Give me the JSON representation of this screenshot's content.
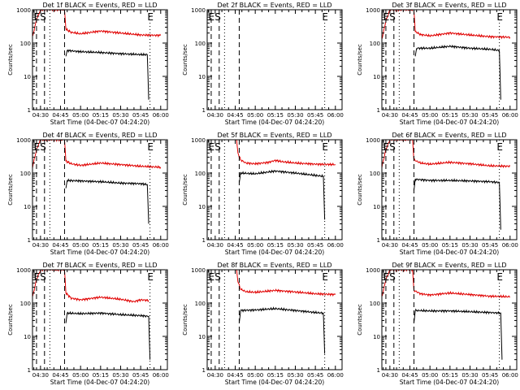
{
  "colors": {
    "events": "#000000",
    "lld": "#e00000",
    "axes": "#000000",
    "background": "#ffffff"
  },
  "chart_data": [
    {
      "type": "line",
      "title": "Det 1f BLACK = Events, RED = LLD",
      "xlabel": "Start Time (04-Dec-07 04:24:20)",
      "ylabel": "Counts/sec",
      "yscale": "log",
      "ylim": [
        1,
        1000
      ],
      "xlim": [
        "04:24",
        "06:05"
      ],
      "x_ticks": [
        "04:30",
        "04:45",
        "05:00",
        "05:15",
        "05:30",
        "05:45",
        "06:00"
      ],
      "y_ticks": [
        "1",
        "10",
        "100",
        "1000"
      ],
      "markers": [
        {
          "label": "ES",
          "time": "04:25"
        },
        {
          "label": "E",
          "time": "05:50"
        }
      ],
      "dashed_lines": [
        "04:27",
        "04:33",
        "04:48"
      ],
      "dotted_lines": [
        "04:37",
        "05:52"
      ],
      "series": [
        {
          "color": "#e00000",
          "points": [
            [
              "04:24",
              150
            ],
            [
              "04:27",
              500
            ],
            [
              "04:30",
              1000
            ],
            [
              "04:48",
              1000
            ],
            [
              "04:49",
              260
            ],
            [
              "04:53",
              210
            ],
            [
              "05:00",
              190
            ],
            [
              "05:15",
              230
            ],
            [
              "05:30",
              200
            ],
            [
              "05:45",
              175
            ],
            [
              "06:00",
              170
            ]
          ]
        },
        {
          "color": "#000000",
          "points": [
            [
              "04:49",
              40
            ],
            [
              "04:50",
              60
            ],
            [
              "05:00",
              55
            ],
            [
              "05:15",
              52
            ],
            [
              "05:30",
              48
            ],
            [
              "05:45",
              45
            ],
            [
              "05:50",
              45
            ],
            [
              "05:51",
              2
            ]
          ]
        }
      ]
    },
    {
      "type": "line",
      "title": "Det 2f BLACK = Events, RED = LLD",
      "xlabel": "Start Time (04-Dec-07 04:24:20)",
      "ylabel": "Counts/sec",
      "yscale": "log",
      "ylim": [
        1,
        1000
      ],
      "xlim": [
        "04:24",
        "06:05"
      ],
      "x_ticks": [
        "04:30",
        "04:45",
        "05:00",
        "05:15",
        "05:30",
        "05:45",
        "06:00"
      ],
      "y_ticks": [
        "1",
        "10",
        "100",
        "1000"
      ],
      "markers": [
        {
          "label": "ES",
          "time": "04:25"
        },
        {
          "label": "E",
          "time": "05:50"
        }
      ],
      "dashed_lines": [
        "04:27",
        "04:33",
        "04:48"
      ],
      "dotted_lines": [
        "04:37",
        "05:52"
      ],
      "series": []
    },
    {
      "type": "line",
      "title": "Det 3f BLACK = Events, RED = LLD",
      "xlabel": "Start Time (04-Dec-07 04:24:20)",
      "ylabel": "Counts/sec",
      "yscale": "log",
      "ylim": [
        1,
        1000
      ],
      "xlim": [
        "04:24",
        "06:05"
      ],
      "x_ticks": [
        "04:30",
        "04:45",
        "05:00",
        "05:15",
        "05:30",
        "05:45",
        "06:00"
      ],
      "y_ticks": [
        "1",
        "10",
        "100",
        "1000"
      ],
      "markers": [
        {
          "label": "ES",
          "time": "04:25"
        },
        {
          "label": "E",
          "time": "05:50"
        }
      ],
      "dashed_lines": [
        "04:27",
        "04:33",
        "04:48"
      ],
      "dotted_lines": [
        "04:37",
        "05:52"
      ],
      "series": [
        {
          "color": "#e00000",
          "points": [
            [
              "04:24",
              130
            ],
            [
              "04:27",
              450
            ],
            [
              "04:30",
              1000
            ],
            [
              "04:48",
              1000
            ],
            [
              "04:49",
              220
            ],
            [
              "04:53",
              180
            ],
            [
              "05:00",
              165
            ],
            [
              "05:15",
              200
            ],
            [
              "05:30",
              175
            ],
            [
              "05:45",
              155
            ],
            [
              "06:00",
              150
            ]
          ]
        },
        {
          "color": "#000000",
          "points": [
            [
              "04:49",
              40
            ],
            [
              "04:50",
              70
            ],
            [
              "05:00",
              70
            ],
            [
              "05:15",
              80
            ],
            [
              "05:30",
              70
            ],
            [
              "05:45",
              65
            ],
            [
              "05:52",
              60
            ],
            [
              "05:53",
              2
            ]
          ]
        }
      ]
    },
    {
      "type": "line",
      "title": "Det 4f BLACK = Events, RED = LLD",
      "xlabel": "Start Time (04-Dec-07 04:24:20)",
      "ylabel": "Counts/sec",
      "yscale": "log",
      "ylim": [
        1,
        1000
      ],
      "xlim": [
        "04:24",
        "06:05"
      ],
      "x_ticks": [
        "04:30",
        "04:45",
        "05:00",
        "05:15",
        "05:30",
        "05:45",
        "06:00"
      ],
      "y_ticks": [
        "1",
        "10",
        "100",
        "1000"
      ],
      "markers": [
        {
          "label": "ES",
          "time": "04:25"
        },
        {
          "label": "E",
          "time": "05:50"
        }
      ],
      "dashed_lines": [
        "04:27",
        "04:33",
        "04:48"
      ],
      "dotted_lines": [
        "04:37",
        "05:52"
      ],
      "series": [
        {
          "color": "#e00000",
          "points": [
            [
              "04:24",
              150
            ],
            [
              "04:27",
              500
            ],
            [
              "04:30",
              1000
            ],
            [
              "04:48",
              1000
            ],
            [
              "04:49",
              230
            ],
            [
              "04:53",
              190
            ],
            [
              "05:00",
              170
            ],
            [
              "05:15",
              200
            ],
            [
              "05:30",
              180
            ],
            [
              "05:45",
              160
            ],
            [
              "06:00",
              150
            ]
          ]
        },
        {
          "color": "#000000",
          "points": [
            [
              "04:49",
              35
            ],
            [
              "04:50",
              60
            ],
            [
              "05:00",
              58
            ],
            [
              "05:15",
              55
            ],
            [
              "05:30",
              50
            ],
            [
              "05:45",
              48
            ],
            [
              "05:50",
              45
            ],
            [
              "05:51",
              3
            ]
          ]
        }
      ]
    },
    {
      "type": "line",
      "title": "Det 5f BLACK = Events, RED = LLD",
      "xlabel": "Start Time (04-Dec-07 04:24:20)",
      "ylabel": "Counts/sec",
      "yscale": "log",
      "ylim": [
        1,
        1000
      ],
      "xlim": [
        "04:24",
        "06:05"
      ],
      "x_ticks": [
        "04:30",
        "04:45",
        "05:00",
        "05:15",
        "05:30",
        "05:45",
        "06:00"
      ],
      "y_ticks": [
        "1",
        "10",
        "100",
        "1000"
      ],
      "markers": [
        {
          "label": "ES",
          "time": "04:25"
        },
        {
          "label": "E",
          "time": "05:50"
        }
      ],
      "dashed_lines": [
        "04:27",
        "04:33",
        "04:48"
      ],
      "dotted_lines": [
        "04:37",
        "05:52"
      ],
      "series": [
        {
          "color": "#e00000",
          "points": [
            [
              "04:46",
              1000
            ],
            [
              "04:47",
              400
            ],
            [
              "04:49",
              250
            ],
            [
              "04:53",
              200
            ],
            [
              "05:00",
              190
            ],
            [
              "05:10",
              210
            ],
            [
              "05:15",
              240
            ],
            [
              "05:20",
              220
            ],
            [
              "05:30",
              200
            ],
            [
              "05:45",
              185
            ],
            [
              "06:00",
              180
            ]
          ]
        },
        {
          "color": "#000000",
          "points": [
            [
              "04:48",
              50
            ],
            [
              "04:49",
              100
            ],
            [
              "05:00",
              95
            ],
            [
              "05:15",
              115
            ],
            [
              "05:30",
              100
            ],
            [
              "05:45",
              85
            ],
            [
              "05:51",
              80
            ],
            [
              "05:52",
              4
            ]
          ]
        }
      ]
    },
    {
      "type": "line",
      "title": "Det 6f BLACK = Events, RED = LLD",
      "xlabel": "Start Time (04-Dec-07 04:24:20)",
      "ylabel": "Counts/sec",
      "yscale": "log",
      "ylim": [
        1,
        1000
      ],
      "xlim": [
        "04:24",
        "06:05"
      ],
      "x_ticks": [
        "04:30",
        "04:45",
        "05:00",
        "05:15",
        "05:30",
        "05:45",
        "06:00"
      ],
      "y_ticks": [
        "1",
        "10",
        "100",
        "1000"
      ],
      "markers": [
        {
          "label": "ES",
          "time": "04:25"
        },
        {
          "label": "E",
          "time": "05:50"
        }
      ],
      "dashed_lines": [
        "04:27",
        "04:33",
        "04:48"
      ],
      "dotted_lines": [
        "04:37",
        "05:52"
      ],
      "series": [
        {
          "color": "#e00000",
          "points": [
            [
              "04:24",
              150
            ],
            [
              "04:27",
              500
            ],
            [
              "04:30",
              1000
            ],
            [
              "04:47",
              1000
            ],
            [
              "04:48",
              250
            ],
            [
              "04:53",
              200
            ],
            [
              "05:00",
              185
            ],
            [
              "05:15",
              210
            ],
            [
              "05:30",
              190
            ],
            [
              "05:45",
              165
            ],
            [
              "06:00",
              160
            ]
          ]
        },
        {
          "color": "#000000",
          "points": [
            [
              "04:48",
              30
            ],
            [
              "04:49",
              65
            ],
            [
              "05:00",
              60
            ],
            [
              "05:15",
              60
            ],
            [
              "05:30",
              58
            ],
            [
              "05:45",
              55
            ],
            [
              "05:52",
              52
            ],
            [
              "05:53",
              2
            ]
          ]
        }
      ]
    },
    {
      "type": "line",
      "title": "Det 7f BLACK = Events, RED = LLD",
      "xlabel": "Start Time (04-Dec-07 04:24:20)",
      "ylabel": "Counts/sec",
      "yscale": "log",
      "ylim": [
        1,
        1000
      ],
      "xlim": [
        "04:24",
        "06:05"
      ],
      "x_ticks": [
        "04:30",
        "04:45",
        "05:00",
        "05:15",
        "05:30",
        "05:45",
        "06:00"
      ],
      "y_ticks": [
        "1",
        "10",
        "100",
        "1000"
      ],
      "markers": [
        {
          "label": "ES",
          "time": "04:25"
        },
        {
          "label": "E",
          "time": "05:50"
        }
      ],
      "dashed_lines": [
        "04:27",
        "04:33",
        "04:48"
      ],
      "dotted_lines": [
        "04:37",
        "05:52"
      ],
      "series": [
        {
          "color": "#e00000",
          "points": [
            [
              "04:24",
              150
            ],
            [
              "04:27",
              500
            ],
            [
              "04:30",
              1000
            ],
            [
              "04:48",
              1000
            ],
            [
              "04:49",
              200
            ],
            [
              "04:53",
              140
            ],
            [
              "05:00",
              125
            ],
            [
              "05:15",
              150
            ],
            [
              "05:30",
              130
            ],
            [
              "05:40",
              110
            ],
            [
              "05:45",
              125
            ],
            [
              "05:51",
              120
            ]
          ]
        },
        {
          "color": "#000000",
          "points": [
            [
              "04:49",
              25
            ],
            [
              "04:50",
              50
            ],
            [
              "05:00",
              48
            ],
            [
              "05:15",
              50
            ],
            [
              "05:30",
              45
            ],
            [
              "05:45",
              42
            ],
            [
              "05:51",
              40
            ],
            [
              "05:52",
              2
            ]
          ]
        }
      ]
    },
    {
      "type": "line",
      "title": "Det 8f BLACK = Events, RED = LLD",
      "xlabel": "Start Time (04-Dec-07 04:24:20)",
      "ylabel": "Counts/sec",
      "yscale": "log",
      "ylim": [
        1,
        1000
      ],
      "xlim": [
        "04:24",
        "06:05"
      ],
      "x_ticks": [
        "04:30",
        "04:45",
        "05:00",
        "05:15",
        "05:30",
        "05:45",
        "06:00"
      ],
      "y_ticks": [
        "1",
        "10",
        "100",
        "1000"
      ],
      "markers": [
        {
          "label": "ES",
          "time": "04:25"
        },
        {
          "label": "E",
          "time": "05:50"
        }
      ],
      "dashed_lines": [
        "04:27",
        "04:33",
        "04:48"
      ],
      "dotted_lines": [
        "04:37",
        "05:52"
      ],
      "series": [
        {
          "color": "#e00000",
          "points": [
            [
              "04:46",
              1000
            ],
            [
              "04:47",
              450
            ],
            [
              "04:49",
              260
            ],
            [
              "04:53",
              220
            ],
            [
              "05:00",
              210
            ],
            [
              "05:15",
              240
            ],
            [
              "05:30",
              215
            ],
            [
              "05:45",
              190
            ],
            [
              "06:00",
              180
            ]
          ]
        },
        {
          "color": "#000000",
          "points": [
            [
              "04:48",
              25
            ],
            [
              "04:49",
              60
            ],
            [
              "05:00",
              62
            ],
            [
              "05:15",
              68
            ],
            [
              "05:30",
              60
            ],
            [
              "05:45",
              52
            ],
            [
              "05:51",
              50
            ],
            [
              "05:52",
              3
            ]
          ]
        }
      ]
    },
    {
      "type": "line",
      "title": "Det 9f BLACK = Events, RED = LLD",
      "xlabel": "Start Time (04-Dec-07 04:24:20)",
      "ylabel": "Counts/sec",
      "yscale": "log",
      "ylim": [
        1,
        1000
      ],
      "xlim": [
        "04:24",
        "06:05"
      ],
      "x_ticks": [
        "04:30",
        "04:45",
        "05:00",
        "05:15",
        "05:30",
        "05:45",
        "06:00"
      ],
      "y_ticks": [
        "1",
        "10",
        "100",
        "1000"
      ],
      "markers": [
        {
          "label": "ES",
          "time": "04:25"
        },
        {
          "label": "E",
          "time": "05:50"
        }
      ],
      "dashed_lines": [
        "04:27",
        "04:33",
        "04:48"
      ],
      "dotted_lines": [
        "04:37",
        "05:52"
      ],
      "series": [
        {
          "color": "#e00000",
          "points": [
            [
              "04:24",
              150
            ],
            [
              "04:27",
              500
            ],
            [
              "04:30",
              1000
            ],
            [
              "04:47",
              1000
            ],
            [
              "04:48",
              240
            ],
            [
              "04:53",
              190
            ],
            [
              "05:00",
              175
            ],
            [
              "05:15",
              200
            ],
            [
              "05:30",
              180
            ],
            [
              "05:45",
              160
            ],
            [
              "06:00",
              155
            ]
          ]
        },
        {
          "color": "#000000",
          "points": [
            [
              "04:48",
              25
            ],
            [
              "04:49",
              60
            ],
            [
              "05:00",
              58
            ],
            [
              "05:15",
              58
            ],
            [
              "05:30",
              55
            ],
            [
              "05:45",
              52
            ],
            [
              "05:53",
              50
            ],
            [
              "05:54",
              2
            ]
          ]
        }
      ]
    }
  ]
}
